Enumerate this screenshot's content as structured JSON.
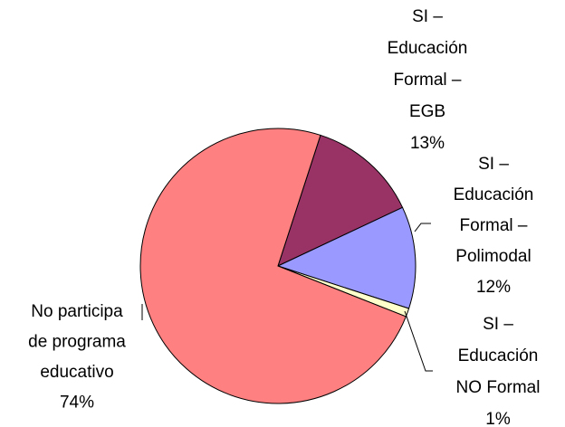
{
  "chart_data": {
    "type": "pie",
    "categories": [
      "SI –\nEducación\nFormal –\nEGB",
      "SI –\nEducación\nFormal –\nPolimodal",
      "SI –\nEducación\nNO Formal",
      "No participa\nde programa\neducativo"
    ],
    "values": [
      13,
      12,
      1,
      74
    ],
    "value_labels": [
      "13%",
      "12%",
      "1%",
      "74%"
    ],
    "colors": [
      "#993366",
      "#9999ff",
      "#ffffcc",
      "#ff8080"
    ]
  }
}
